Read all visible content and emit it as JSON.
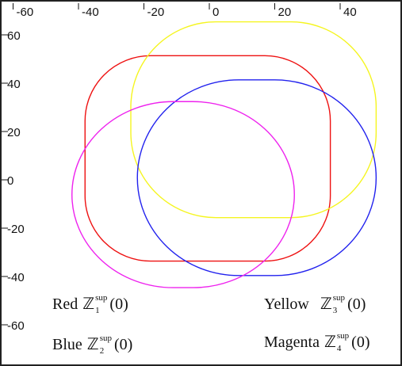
{
  "chart_data": {
    "type": "line",
    "title": "",
    "xlabel": "",
    "ylabel": "",
    "xlim": [
      -63,
      52
    ],
    "ylim": [
      -67,
      70
    ],
    "x_ticks": [
      -60,
      -40,
      -20,
      0,
      20,
      40
    ],
    "x_tick_labels": [
      "-60",
      "-40",
      "-20",
      "0",
      "20",
      "40"
    ],
    "y_ticks": [
      60,
      40,
      20,
      0,
      -20,
      -40,
      -60
    ],
    "y_tick_labels": [
      "60",
      "40",
      "20",
      "0",
      "-20",
      "-40",
      "-60"
    ],
    "grid": false,
    "series": [
      {
        "key": "red",
        "color": "#ee1111",
        "shape": "rounded-rectangle",
        "x_range": [
          -38,
          37
        ],
        "y_range": [
          -31,
          54
        ],
        "corner_radius": 20
      },
      {
        "key": "yellow",
        "color": "#f5f520",
        "shape": "rounded-rectangle",
        "x_range": [
          -24,
          51
        ],
        "y_range": [
          -13,
          68
        ],
        "corner_radius": 26
      },
      {
        "key": "blue",
        "color": "#2222ee",
        "shape": "rounded-rectangle",
        "x_range": [
          -22,
          51
        ],
        "y_range": [
          -37,
          44
        ],
        "corner_radius": 31
      },
      {
        "key": "magenta",
        "color": "#ee22ee",
        "shape": "rounded-rectangle",
        "x_range": [
          -42,
          26
        ],
        "y_range": [
          -42,
          35
        ],
        "corner_radius": 31
      }
    ],
    "legend": {
      "placement": "bottom",
      "items": [
        {
          "label": "Red",
          "symbol": "ℤ",
          "sub": "1",
          "sup": "sup",
          "arg": "(0)"
        },
        {
          "label": "Yellow",
          "symbol": "ℤ",
          "sub": "3",
          "sup": "sup",
          "arg": "(0)"
        },
        {
          "label": "Blue",
          "symbol": "ℤ",
          "sub": "2",
          "sup": "sup",
          "arg": "(0)"
        },
        {
          "label": "Magenta",
          "symbol": "ℤ",
          "sub": "4",
          "sup": "sup",
          "arg": "(0)"
        }
      ]
    }
  }
}
